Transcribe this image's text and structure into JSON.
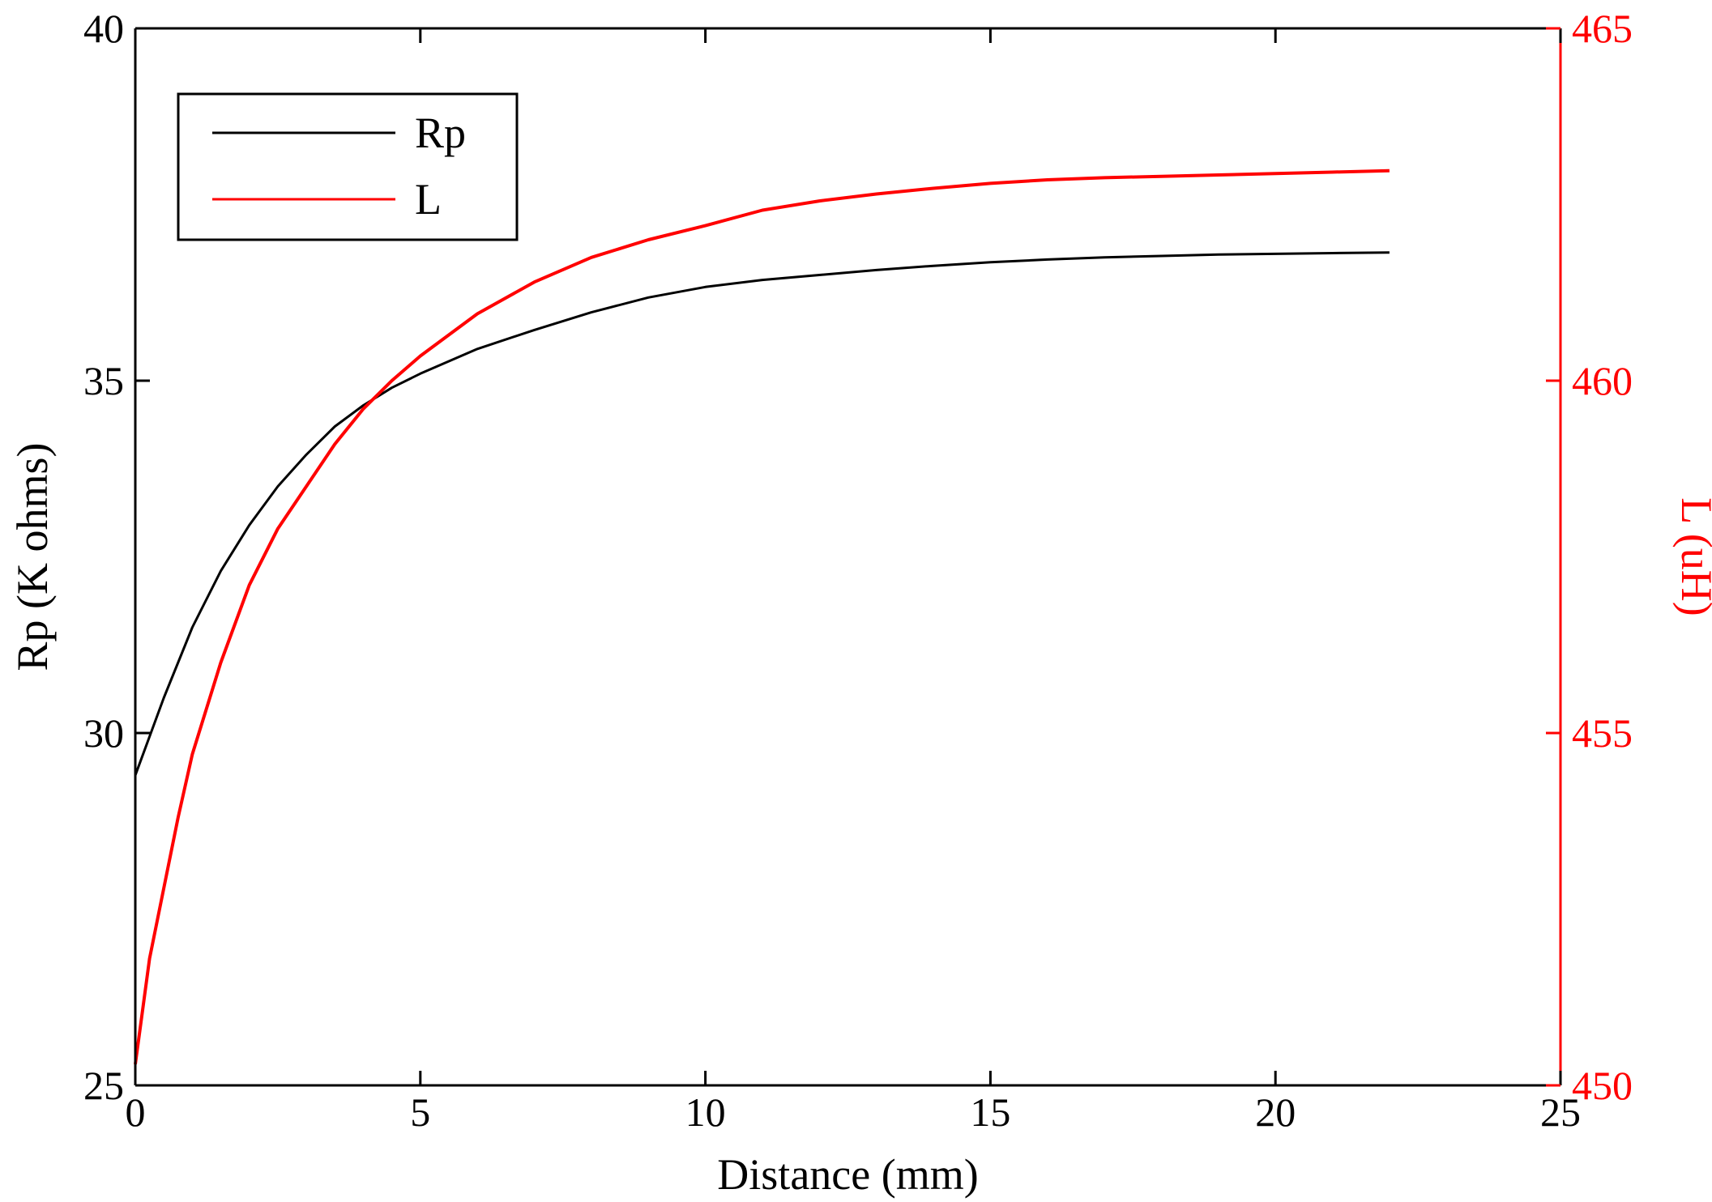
{
  "chart_data": {
    "type": "line",
    "title": "",
    "xlabel": "Distance (mm)",
    "ylabel_left": "Rp (K ohms)",
    "ylabel_right": "L (uH)",
    "xlim": [
      0,
      25
    ],
    "ylim_left": [
      25,
      40
    ],
    "ylim_right": [
      450,
      465
    ],
    "x_ticks": [
      "0",
      "5",
      "10",
      "15",
      "20",
      "25"
    ],
    "y_ticks_left": [
      "25",
      "30",
      "35",
      "40"
    ],
    "y_ticks_right": [
      "450",
      "455",
      "460",
      "465"
    ],
    "grid": false,
    "legend_position": "top-left",
    "colors": {
      "Rp": "#000000",
      "L": "#ff0000"
    },
    "series": [
      {
        "name": "Rp",
        "axis": "left",
        "x": [
          0,
          0.5,
          1,
          1.5,
          2,
          2.5,
          3,
          3.5,
          4,
          4.5,
          5,
          6,
          7,
          8,
          9,
          10,
          11,
          12,
          13,
          14,
          15,
          16,
          17,
          18,
          19,
          20,
          21,
          22
        ],
        "y": [
          29.4,
          30.5,
          31.5,
          32.3,
          32.95,
          33.5,
          33.95,
          34.35,
          34.65,
          34.9,
          35.1,
          35.45,
          35.72,
          35.97,
          36.18,
          36.33,
          36.43,
          36.5,
          36.57,
          36.63,
          36.68,
          36.72,
          36.75,
          36.77,
          36.79,
          36.8,
          36.81,
          36.82
        ]
      },
      {
        "name": "L",
        "axis": "right",
        "x": [
          0,
          0.25,
          0.5,
          0.75,
          1,
          1.5,
          2,
          2.5,
          3,
          3.5,
          4,
          4.5,
          5,
          6,
          7,
          8,
          9,
          10,
          11,
          12,
          13,
          14,
          15,
          16,
          17,
          18,
          19,
          20,
          21,
          22
        ],
        "y": [
          450.3,
          451.8,
          452.8,
          453.8,
          454.7,
          456.0,
          457.1,
          457.9,
          458.5,
          459.1,
          459.6,
          460.0,
          460.35,
          460.95,
          461.4,
          461.75,
          462.0,
          462.2,
          462.42,
          462.55,
          462.65,
          462.73,
          462.8,
          462.85,
          462.88,
          462.9,
          462.92,
          462.94,
          462.96,
          462.98
        ]
      }
    ]
  }
}
